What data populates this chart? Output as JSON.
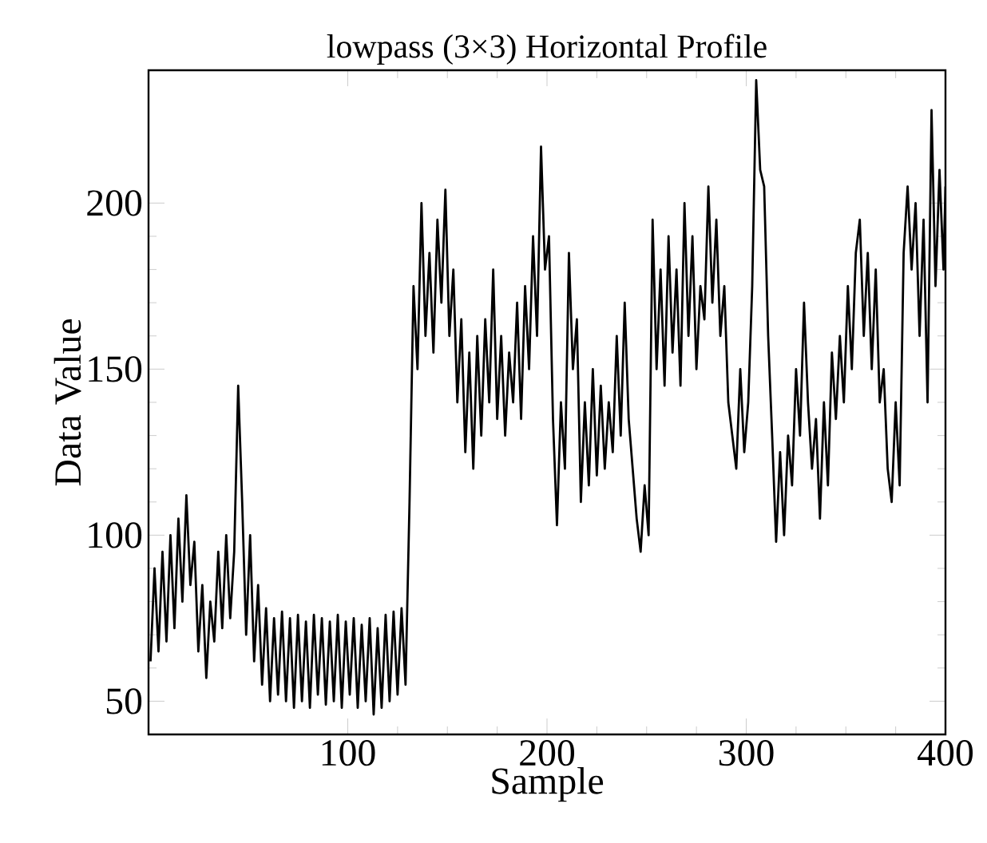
{
  "chart_data": {
    "type": "line",
    "title": "lowpass (3×3) Horizontal Profile",
    "xlabel": "Sample",
    "ylabel": "Data Value",
    "x": [
      1,
      3,
      5,
      7,
      9,
      11,
      13,
      15,
      17,
      19,
      21,
      23,
      25,
      27,
      29,
      31,
      33,
      35,
      37,
      39,
      41,
      43,
      45,
      47,
      49,
      51,
      53,
      55,
      57,
      59,
      61,
      63,
      65,
      67,
      69,
      71,
      73,
      75,
      77,
      79,
      81,
      83,
      85,
      87,
      89,
      91,
      93,
      95,
      97,
      99,
      101,
      103,
      105,
      107,
      109,
      111,
      113,
      115,
      117,
      119,
      121,
      123,
      125,
      127,
      129,
      131,
      133,
      135,
      137,
      139,
      141,
      143,
      145,
      147,
      149,
      151,
      153,
      155,
      157,
      159,
      161,
      163,
      165,
      167,
      169,
      171,
      173,
      175,
      177,
      179,
      181,
      183,
      185,
      187,
      189,
      191,
      193,
      195,
      197,
      199,
      201,
      203,
      205,
      207,
      209,
      211,
      213,
      215,
      217,
      219,
      221,
      223,
      225,
      227,
      229,
      231,
      233,
      235,
      237,
      239,
      241,
      243,
      245,
      247,
      249,
      251,
      253,
      255,
      257,
      259,
      261,
      263,
      265,
      267,
      269,
      271,
      273,
      275,
      277,
      279,
      281,
      283,
      285,
      287,
      289,
      291,
      293,
      295,
      297,
      299,
      301,
      303,
      305,
      307,
      309,
      311,
      313,
      315,
      317,
      319,
      321,
      323,
      325,
      327,
      329,
      331,
      333,
      335,
      337,
      339,
      341,
      343,
      345,
      347,
      349,
      351,
      353,
      355,
      357,
      359,
      361,
      363,
      365,
      367,
      369,
      371,
      373,
      375,
      377,
      379,
      381,
      383,
      385,
      387,
      389,
      391,
      393,
      395,
      397,
      399,
      400
    ],
    "values": [
      62,
      90,
      65,
      95,
      68,
      100,
      72,
      105,
      80,
      112,
      85,
      98,
      65,
      85,
      57,
      80,
      68,
      95,
      72,
      100,
      75,
      95,
      145,
      110,
      70,
      100,
      62,
      85,
      55,
      78,
      50,
      75,
      52,
      77,
      50,
      75,
      48,
      76,
      50,
      74,
      48,
      76,
      52,
      75,
      49,
      74,
      50,
      76,
      48,
      74,
      52,
      75,
      48,
      73,
      50,
      75,
      46,
      72,
      48,
      76,
      50,
      77,
      52,
      78,
      55,
      110,
      175,
      150,
      200,
      160,
      185,
      155,
      195,
      170,
      204,
      160,
      180,
      140,
      165,
      125,
      155,
      120,
      160,
      130,
      165,
      140,
      180,
      135,
      160,
      130,
      155,
      140,
      170,
      135,
      175,
      150,
      190,
      160,
      217,
      180,
      190,
      135,
      103,
      140,
      120,
      185,
      150,
      165,
      110,
      140,
      115,
      150,
      118,
      145,
      120,
      140,
      125,
      160,
      130,
      170,
      135,
      120,
      105,
      95,
      115,
      100,
      195,
      150,
      180,
      145,
      190,
      155,
      180,
      145,
      200,
      160,
      190,
      150,
      175,
      165,
      205,
      170,
      195,
      160,
      175,
      140,
      130,
      120,
      150,
      125,
      140,
      175,
      237,
      210,
      205,
      160,
      130,
      98,
      125,
      100,
      130,
      115,
      150,
      130,
      170,
      140,
      120,
      135,
      105,
      140,
      115,
      155,
      135,
      160,
      140,
      175,
      150,
      185,
      195,
      160,
      185,
      150,
      180,
      140,
      150,
      120,
      110,
      140,
      115,
      185,
      205,
      180,
      200,
      160,
      195,
      140,
      228,
      175,
      210,
      180,
      205
    ],
    "color": "#000000",
    "xlim": [
      0,
      400
    ],
    "ylim": [
      40,
      240
    ],
    "xticks": [
      100,
      200,
      300,
      400
    ],
    "yticks": [
      50,
      100,
      150,
      200
    ]
  }
}
